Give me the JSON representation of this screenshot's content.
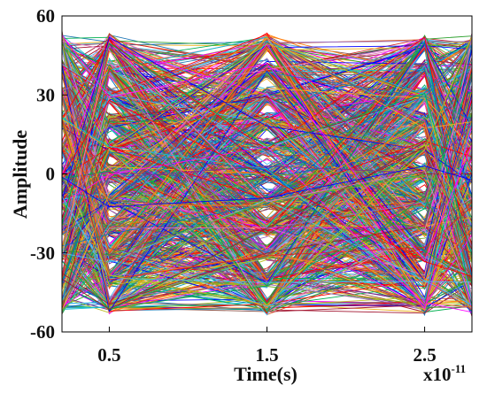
{
  "chart_data": {
    "type": "line",
    "title": "",
    "xlabel": "Time(s)",
    "ylabel": "Amplitude",
    "x_multiplier": {
      "base": "x10",
      "exponent": "-11"
    },
    "xlim": [
      0.2,
      2.8
    ],
    "ylim": [
      -60,
      60
    ],
    "x_ticks": [
      0.5,
      1.5,
      2.5
    ],
    "x_tick_labels": [
      "0.5",
      "1.5",
      "2.5"
    ],
    "y_ticks": [
      60,
      30,
      0,
      -30,
      -60
    ],
    "y_tick_labels": [
      "60",
      "30",
      "0",
      "-30",
      "-60"
    ],
    "grid": false,
    "legend": "none",
    "x": [
      0.2,
      0.5,
      1.5,
      2.5,
      2.8
    ],
    "symbol_levels": [
      -50,
      -40,
      -30,
      -20,
      -10,
      0,
      10,
      20,
      30,
      40,
      50
    ],
    "trace_count": 1100,
    "colors": [
      "#0072BD",
      "#D95319",
      "#EDB120",
      "#7E2F8E",
      "#77AC30",
      "#4DBEEE",
      "#A2142F",
      "#1f77b4",
      "#2ca02c",
      "#d62728",
      "#9467bd",
      "#17becf",
      "#bcbd22",
      "#ff7f0e",
      "#e377c2",
      "#8c564b",
      "#00b050",
      "#ff00ff",
      "#0000ff",
      "#ff0000"
    ]
  }
}
